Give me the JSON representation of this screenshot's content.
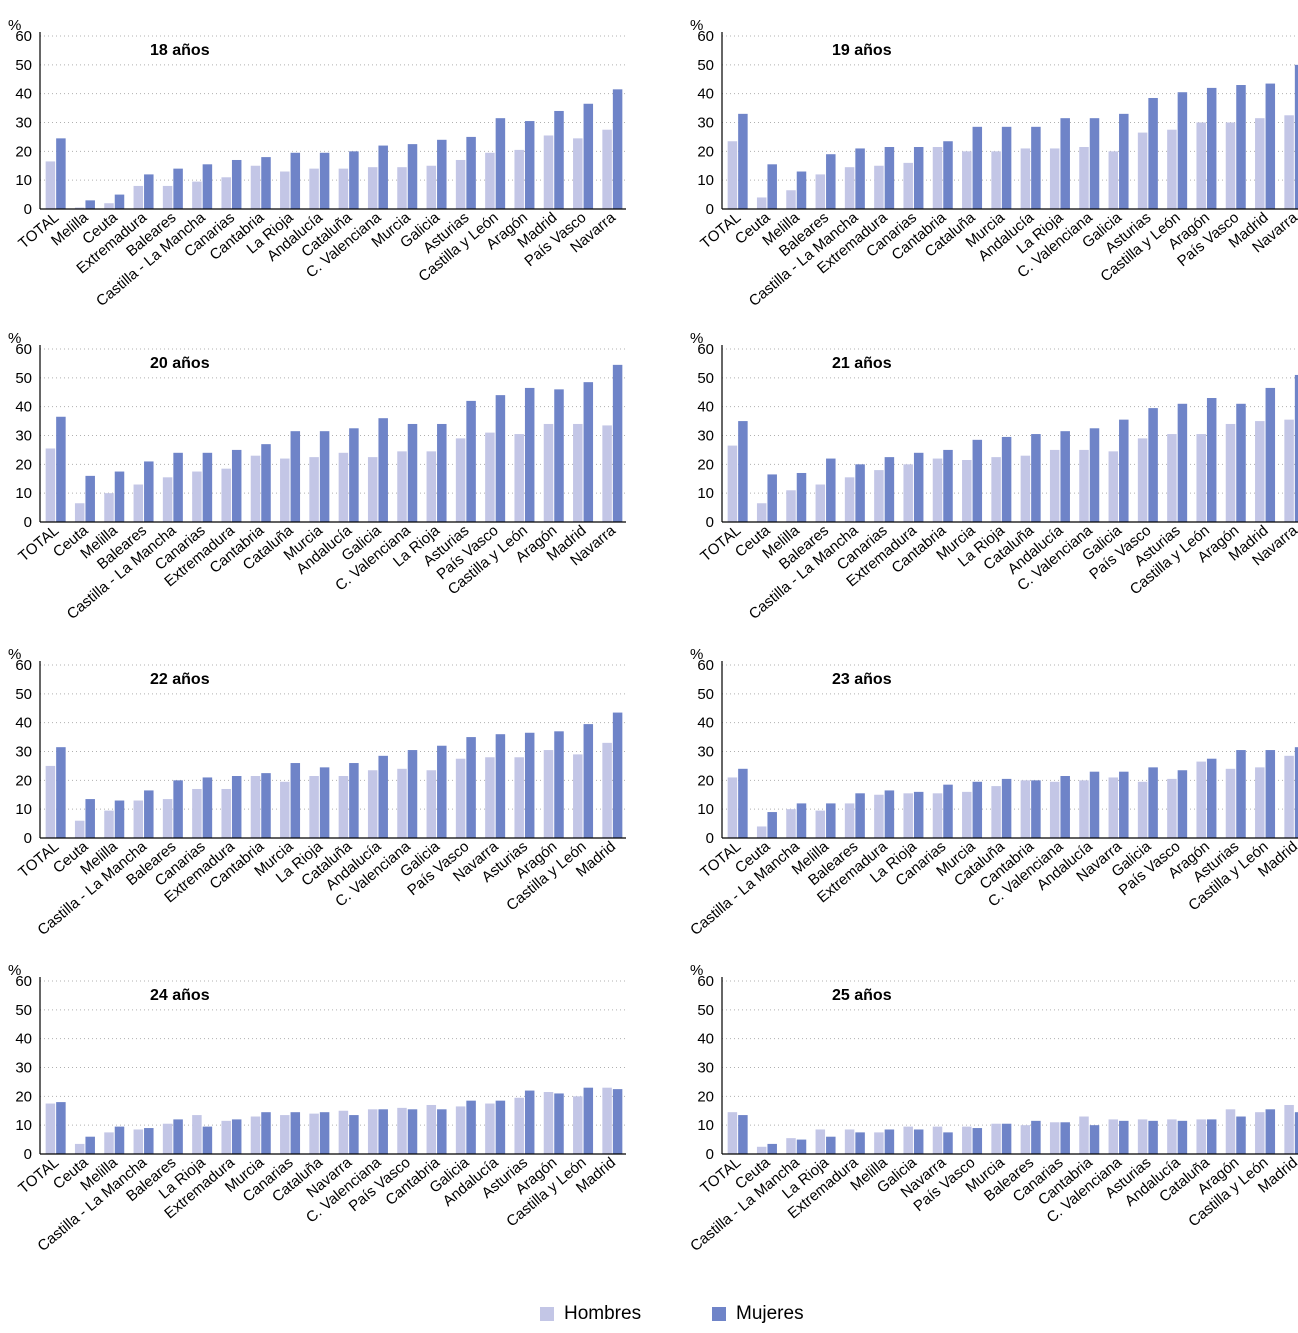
{
  "colors": {
    "hombres": "#c3c6e6",
    "mujeres": "#6f84c8",
    "grid": "#b0b0b0",
    "axis": "#000000"
  },
  "legend": {
    "hombres": "Hombres",
    "mujeres": "Mujeres"
  },
  "chart_data": [
    {
      "type": "bar",
      "title": "18 años",
      "ylabel": "%",
      "ylim": [
        0,
        60
      ],
      "yticks": [
        0,
        10,
        20,
        30,
        40,
        50,
        60
      ],
      "grid": true,
      "categories": [
        "TOTAL",
        "Melilla",
        "Ceuta",
        "Extremadura",
        "Baleares",
        "Castilla - La Mancha",
        "Canarias",
        "Cantabria",
        "La Rioja",
        "Andalucía",
        "Cataluña",
        "C. Valenciana",
        "Murcia",
        "Galicia",
        "Asturias",
        "Castilla y León",
        "Aragón",
        "Madrid",
        "País Vasco",
        "Navarra"
      ],
      "series": [
        {
          "name": "Hombres",
          "values": [
            16.5,
            0.5,
            2,
            8,
            8,
            9.5,
            11,
            15,
            13,
            14,
            14,
            14.5,
            14.5,
            15,
            17,
            19.5,
            20.5,
            25.5,
            24.5,
            27.5
          ]
        },
        {
          "name": "Mujeres",
          "values": [
            24.5,
            3,
            5,
            12,
            14,
            15.5,
            17,
            18,
            19.5,
            19.5,
            20,
            22,
            22.5,
            24,
            25,
            31.5,
            30.5,
            34,
            36.5,
            41.5
          ]
        }
      ]
    },
    {
      "type": "bar",
      "title": "19 años",
      "ylabel": "%",
      "ylim": [
        0,
        60
      ],
      "yticks": [
        0,
        10,
        20,
        30,
        40,
        50,
        60
      ],
      "grid": true,
      "categories": [
        "TOTAL",
        "Ceuta",
        "Melilla",
        "Baleares",
        "Castilla - La Mancha",
        "Extremadura",
        "Canarias",
        "Cantabria",
        "Cataluña",
        "Murcia",
        "Andalucía",
        "La Rioja",
        "C. Valenciana",
        "Galicia",
        "Asturias",
        "Castilla y León",
        "Aragón",
        "País Vasco",
        "Madrid",
        "Navarra"
      ],
      "series": [
        {
          "name": "Hombres",
          "values": [
            23.5,
            4,
            6.5,
            12,
            14.5,
            15,
            16,
            21.5,
            20,
            20,
            21,
            21,
            21.5,
            20,
            26.5,
            27.5,
            30,
            30,
            31.5,
            32.5
          ]
        },
        {
          "name": "Mujeres",
          "values": [
            33,
            15.5,
            13,
            19,
            21,
            21.5,
            21.5,
            23.5,
            28.5,
            28.5,
            28.5,
            31.5,
            31.5,
            33,
            38.5,
            40.5,
            42,
            43,
            43.5,
            50
          ]
        }
      ]
    },
    {
      "type": "bar",
      "title": "20 años",
      "ylabel": "%",
      "ylim": [
        0,
        60
      ],
      "yticks": [
        0,
        10,
        20,
        30,
        40,
        50,
        60
      ],
      "grid": true,
      "categories": [
        "TOTAL",
        "Ceuta",
        "Melilla",
        "Baleares",
        "Castilla - La Mancha",
        "Canarias",
        "Extremadura",
        "Cantabria",
        "Cataluña",
        "Murcia",
        "Andalucía",
        "Galicia",
        "C. Valenciana",
        "La Rioja",
        "Asturias",
        "País Vasco",
        "Castilla y León",
        "Aragón",
        "Madrid",
        "Navarra"
      ],
      "series": [
        {
          "name": "Hombres",
          "values": [
            25.5,
            6.5,
            10,
            13,
            15.5,
            17.5,
            18.5,
            23,
            22,
            22.5,
            24,
            22.5,
            24.5,
            24.5,
            29,
            31,
            30.5,
            34,
            34,
            33.5
          ]
        },
        {
          "name": "Mujeres",
          "values": [
            36.5,
            16,
            17.5,
            21,
            24,
            24,
            25,
            27,
            31.5,
            31.5,
            32.5,
            36,
            34,
            34,
            42,
            44,
            46.5,
            46,
            48.5,
            54.5
          ]
        }
      ]
    },
    {
      "type": "bar",
      "title": "21 años",
      "ylabel": "%",
      "ylim": [
        0,
        60
      ],
      "yticks": [
        0,
        10,
        20,
        30,
        40,
        50,
        60
      ],
      "grid": true,
      "categories": [
        "TOTAL",
        "Ceuta",
        "Melilla",
        "Baleares",
        "Castilla - La Mancha",
        "Canarias",
        "Extremadura",
        "Cantabria",
        "Murcia",
        "La Rioja",
        "Cataluña",
        "Andalucía",
        "C. Valenciana",
        "Galicia",
        "País Vasco",
        "Asturias",
        "Castilla y León",
        "Aragón",
        "Madrid",
        "Navarra"
      ],
      "series": [
        {
          "name": "Hombres",
          "values": [
            26.5,
            6.5,
            11,
            13,
            15.5,
            18,
            20,
            22,
            21.5,
            22.5,
            23,
            25,
            25,
            24.5,
            29,
            30.5,
            30.5,
            34,
            35,
            35.5
          ]
        },
        {
          "name": "Mujeres",
          "values": [
            35,
            16.5,
            17,
            22,
            20,
            22.5,
            24,
            25,
            28.5,
            29.5,
            30.5,
            31.5,
            32.5,
            35.5,
            39.5,
            41,
            43,
            41,
            46.5,
            51
          ]
        }
      ]
    },
    {
      "type": "bar",
      "title": "22 años",
      "ylabel": "%",
      "ylim": [
        0,
        60
      ],
      "yticks": [
        0,
        10,
        20,
        30,
        40,
        50,
        60
      ],
      "grid": true,
      "categories": [
        "TOTAL",
        "Ceuta",
        "Melilla",
        "Castilla - La Mancha",
        "Baleares",
        "Canarias",
        "Extremadura",
        "Cantabria",
        "Murcia",
        "La Rioja",
        "Cataluña",
        "Andalucía",
        "C. Valenciana",
        "Galicia",
        "País Vasco",
        "Navarra",
        "Asturias",
        "Aragón",
        "Castilla y León",
        "Madrid"
      ],
      "series": [
        {
          "name": "Hombres",
          "values": [
            25,
            6,
            9.5,
            13,
            13.5,
            17,
            17,
            21.5,
            19.5,
            21.5,
            21.5,
            23.5,
            24,
            23.5,
            27.5,
            28,
            28,
            30.5,
            29,
            33
          ]
        },
        {
          "name": "Mujeres",
          "values": [
            31.5,
            13.5,
            13,
            16.5,
            20,
            21,
            21.5,
            22.5,
            26,
            24.5,
            26,
            28.5,
            30.5,
            32,
            35,
            36,
            36.5,
            37,
            39.5,
            43.5
          ]
        }
      ]
    },
    {
      "type": "bar",
      "title": "23 años",
      "ylabel": "%",
      "ylim": [
        0,
        60
      ],
      "yticks": [
        0,
        10,
        20,
        30,
        40,
        50,
        60
      ],
      "grid": true,
      "categories": [
        "TOTAL",
        "Ceuta",
        "Castilla - La Mancha",
        "Melilla",
        "Baleares",
        "Extremadura",
        "La Rioja",
        "Canarias",
        "Murcia",
        "Cataluña",
        "Cantabria",
        "C. Valenciana",
        "Andalucía",
        "Navarra",
        "Galicia",
        "País Vasco",
        "Aragón",
        "Asturias",
        "Castilla y León",
        "Madrid"
      ],
      "series": [
        {
          "name": "Hombres",
          "values": [
            21,
            4,
            10,
            9.5,
            12,
            15,
            15.5,
            15.5,
            16,
            18,
            20,
            19.5,
            20,
            21,
            19.5,
            20.5,
            26.5,
            24,
            24.5,
            28.5
          ]
        },
        {
          "name": "Mujeres",
          "values": [
            24,
            9,
            12,
            12,
            15.5,
            16.5,
            16,
            18.5,
            19.5,
            20.5,
            20,
            21.5,
            23,
            23,
            24.5,
            23.5,
            27.5,
            30.5,
            30.5,
            31.5
          ]
        }
      ]
    },
    {
      "type": "bar",
      "title": "24 años",
      "ylabel": "%",
      "ylim": [
        0,
        60
      ],
      "yticks": [
        0,
        10,
        20,
        30,
        40,
        50,
        60
      ],
      "grid": true,
      "categories": [
        "TOTAL",
        "Ceuta",
        "Melilla",
        "Castilla - La Mancha",
        "Baleares",
        "La Rioja",
        "Extremadura",
        "Murcia",
        "Canarias",
        "Cataluña",
        "Navarra",
        "C. Valenciana",
        "País Vasco",
        "Cantabria",
        "Galicia",
        "Andalucía",
        "Asturias",
        "Aragón",
        "Castilla y León",
        "Madrid"
      ],
      "series": [
        {
          "name": "Hombres",
          "values": [
            17.5,
            3.5,
            7.5,
            8.5,
            10.5,
            13.5,
            11.5,
            13,
            13.5,
            14,
            15,
            15.5,
            16,
            17,
            16.5,
            17.5,
            19.5,
            21.5,
            20,
            23
          ]
        },
        {
          "name": "Mujeres",
          "values": [
            18,
            6,
            9.5,
            9,
            12,
            9.5,
            12,
            14.5,
            14.5,
            14.5,
            13.5,
            15.5,
            15.5,
            15.5,
            18.5,
            18.5,
            22,
            21,
            23,
            22.5
          ]
        }
      ]
    },
    {
      "type": "bar",
      "title": "25 años",
      "ylabel": "%",
      "ylim": [
        0,
        60
      ],
      "yticks": [
        0,
        10,
        20,
        30,
        40,
        50,
        60
      ],
      "grid": true,
      "categories": [
        "TOTAL",
        "Ceuta",
        "Castilla - La Mancha",
        "La Rioja",
        "Extremadura",
        "Melilla",
        "Galicia",
        "Navarra",
        "País Vasco",
        "Murcia",
        "Baleares",
        "Canarias",
        "Cantabria",
        "C. Valenciana",
        "Asturias",
        "Andalucía",
        "Cataluña",
        "Aragón",
        "Castilla y León",
        "Madrid"
      ],
      "series": [
        {
          "name": "Hombres",
          "values": [
            14.5,
            2.5,
            5.5,
            8.5,
            8.5,
            7.5,
            9.5,
            9.5,
            9.5,
            10.5,
            10,
            11,
            13,
            12,
            12,
            12,
            12,
            15.5,
            14.5,
            17
          ]
        },
        {
          "name": "Mujeres",
          "values": [
            13.5,
            3.5,
            5,
            6,
            7.5,
            8.5,
            8.5,
            7.5,
            9,
            10.5,
            11.5,
            11,
            10,
            11.5,
            11.5,
            11.5,
            12,
            13,
            15.5,
            14.5
          ]
        }
      ]
    }
  ]
}
